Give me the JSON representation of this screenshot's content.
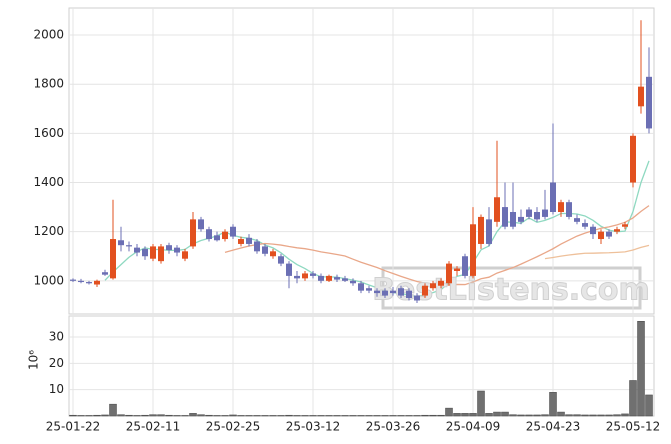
{
  "chart_data": {
    "type": "candlestick",
    "watermark": "BestListens.com",
    "volume_label": "10⁶",
    "categories": [
      "25-01-22",
      null,
      null,
      null,
      null,
      null,
      null,
      null,
      null,
      null,
      "25-02-11",
      null,
      null,
      null,
      null,
      null,
      null,
      null,
      null,
      null,
      "25-02-25",
      null,
      null,
      null,
      null,
      null,
      null,
      null,
      null,
      null,
      "25-03-12",
      null,
      null,
      null,
      null,
      null,
      null,
      null,
      null,
      null,
      "25-03-26",
      null,
      null,
      null,
      null,
      null,
      null,
      null,
      null,
      null,
      "25-04-09",
      null,
      null,
      null,
      null,
      null,
      null,
      null,
      null,
      null,
      "25-04-23",
      null,
      null,
      null,
      null,
      null,
      null,
      null,
      null,
      null,
      "25-05-12",
      null,
      null
    ],
    "open": [
      1005,
      1000,
      995,
      985,
      1035,
      1010,
      1165,
      1145,
      1135,
      1130,
      1090,
      1080,
      1145,
      1135,
      1090,
      1140,
      1250,
      1210,
      1185,
      1170,
      1220,
      1150,
      1175,
      1160,
      1140,
      1100,
      1100,
      1070,
      1020,
      1010,
      1030,
      1020,
      1000,
      1015,
      1010,
      1000,
      990,
      970,
      960,
      960,
      960,
      970,
      960,
      940,
      940,
      970,
      980,
      990,
      1040,
      1100,
      1020,
      1150,
      1250,
      1240,
      1300,
      1280,
      1260,
      1290,
      1280,
      1290,
      1400,
      1280,
      1320,
      1255,
      1235,
      1220,
      1170,
      1200,
      1200,
      1220,
      1400,
      1710,
      1830
    ],
    "high": [
      1010,
      1008,
      1000,
      1005,
      1045,
      1330,
      1220,
      1160,
      1150,
      1140,
      1150,
      1150,
      1155,
      1145,
      1130,
      1280,
      1260,
      1220,
      1200,
      1210,
      1230,
      1180,
      1190,
      1170,
      1150,
      1130,
      1110,
      1080,
      1040,
      1040,
      1040,
      1030,
      1025,
      1025,
      1020,
      1010,
      1000,
      980,
      970,
      970,
      975,
      980,
      970,
      950,
      990,
      1000,
      1010,
      1080,
      1060,
      1110,
      1300,
      1270,
      1300,
      1570,
      1400,
      1400,
      1290,
      1300,
      1300,
      1370,
      1640,
      1330,
      1330,
      1270,
      1250,
      1230,
      1210,
      1210,
      1220,
      1240,
      1600,
      2060,
      1950
    ],
    "low": [
      995,
      990,
      985,
      975,
      1020,
      1005,
      1120,
      1120,
      1100,
      1085,
      1080,
      1070,
      1110,
      1100,
      1080,
      1130,
      1200,
      1160,
      1160,
      1160,
      1170,
      1140,
      1140,
      1110,
      1100,
      1090,
      1060,
      970,
      990,
      1000,
      1010,
      990,
      995,
      995,
      995,
      980,
      950,
      950,
      935,
      930,
      940,
      930,
      920,
      910,
      930,
      960,
      970,
      980,
      1020,
      1010,
      1010,
      1130,
      1140,
      1220,
      1210,
      1210,
      1230,
      1250,
      1240,
      1250,
      1270,
      1260,
      1250,
      1230,
      1210,
      1170,
      1150,
      1170,
      1190,
      1210,
      1380,
      1680,
      1600
    ],
    "close": [
      1000,
      995,
      990,
      1000,
      1025,
      1170,
      1145,
      1140,
      1115,
      1100,
      1140,
      1140,
      1125,
      1115,
      1120,
      1250,
      1210,
      1170,
      1165,
      1200,
      1180,
      1170,
      1150,
      1120,
      1110,
      1120,
      1070,
      1020,
      1010,
      1030,
      1020,
      1000,
      1020,
      1005,
      1000,
      990,
      960,
      960,
      950,
      940,
      950,
      940,
      930,
      920,
      980,
      990,
      1000,
      1070,
      1050,
      1020,
      1230,
      1260,
      1150,
      1340,
      1220,
      1220,
      1240,
      1260,
      1250,
      1260,
      1280,
      1320,
      1260,
      1240,
      1220,
      1190,
      1200,
      1180,
      1210,
      1230,
      1590,
      1790,
      1620
    ],
    "volume": [
      0.3,
      0.2,
      0.2,
      0.3,
      0.4,
      4.5,
      0.5,
      0.3,
      0.2,
      0.3,
      0.5,
      0.5,
      0.3,
      0.2,
      0.2,
      1.0,
      0.5,
      0.3,
      0.2,
      0.2,
      0.4,
      0.2,
      0.2,
      0.2,
      0.2,
      0.2,
      0.2,
      0.3,
      0.2,
      0.2,
      0.2,
      0.2,
      0.2,
      0.2,
      0.2,
      0.2,
      0.2,
      0.2,
      0.2,
      0.2,
      0.2,
      0.2,
      0.2,
      0.2,
      0.3,
      0.3,
      0.3,
      3.0,
      1.0,
      1.0,
      1.0,
      9.5,
      1.0,
      1.5,
      1.5,
      0.5,
      0.4,
      0.4,
      0.4,
      0.5,
      9.0,
      1.5,
      0.5,
      0.5,
      0.4,
      0.4,
      0.4,
      0.4,
      0.5,
      0.8,
      13.5,
      36,
      8
    ],
    "up_color": "#e2501f",
    "down_color": "#6b6fb4",
    "volume_color": "#707070",
    "ma_colors": [
      "#8fd9c1",
      "#e9a789",
      "#eec09a"
    ],
    "ylim": [
      865,
      2110
    ],
    "yticks": [
      1000,
      1200,
      1400,
      1600,
      1800,
      2000
    ],
    "y2lim": [
      0,
      38
    ],
    "y2ticks": [
      10,
      20,
      30
    ],
    "grid": true
  }
}
